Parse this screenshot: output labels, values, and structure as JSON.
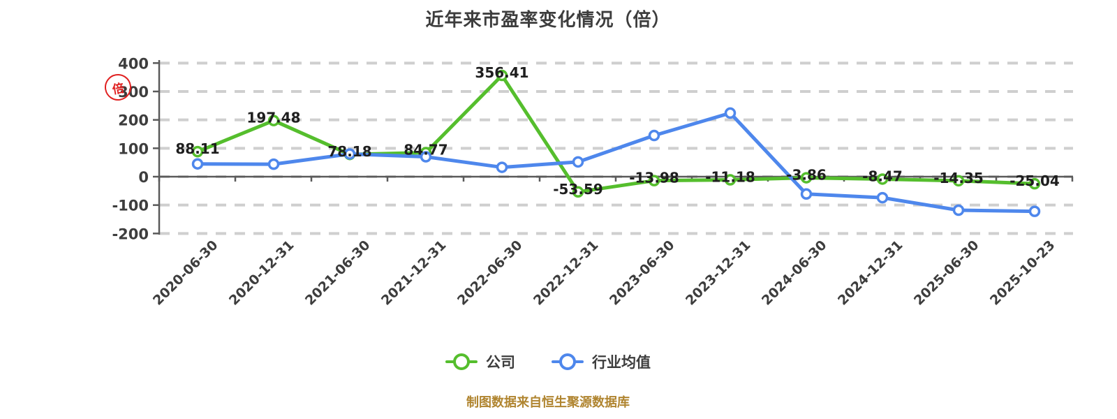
{
  "title": "近年来市盈率变化情况（倍）",
  "y_axis_unit_stamp": "倍",
  "caption": "制图数据来自恒生聚源数据库",
  "colors": {
    "company": "#55bе2d",
    "company_line": "#55be2d",
    "industry_line": "#4e87ec",
    "grid": "#cfcfcf",
    "axis": "#5a5a5a",
    "text": "#3d3d3d",
    "value_label": "#1e1e1e",
    "caption": "#b08530",
    "stamp": "#e02020",
    "background": "#ffffff"
  },
  "chart_data": {
    "type": "line",
    "title": "近年来市盈率变化情况（倍）",
    "categories": [
      "2020-06-30",
      "2020-12-31",
      "2021-06-30",
      "2021-12-31",
      "2022-06-30",
      "2022-12-31",
      "2023-06-30",
      "2023-12-31",
      "2024-06-30",
      "2024-12-31",
      "2025-06-30",
      "2025-10-23"
    ],
    "series": [
      {
        "name": "公司",
        "color": "#55be2d",
        "labeled": true,
        "values": [
          88.11,
          197.48,
          78.18,
          84.77,
          356.41,
          -53.59,
          -13.98,
          -11.18,
          -3.86,
          -8.47,
          -14.35,
          -25.04
        ]
      },
      {
        "name": "行业均值",
        "color": "#4e87ec",
        "labeled": false,
        "values": [
          45,
          44,
          80,
          70,
          33,
          52,
          145,
          224,
          -61,
          -74,
          -118,
          -122
        ]
      }
    ],
    "ylim": [
      -200,
      400
    ],
    "yticks": [
      400,
      300,
      200,
      100,
      0,
      -100,
      -200
    ],
    "grid": "horizontal-dashed",
    "legend_position": "bottom",
    "value_label_decimals": 2
  }
}
